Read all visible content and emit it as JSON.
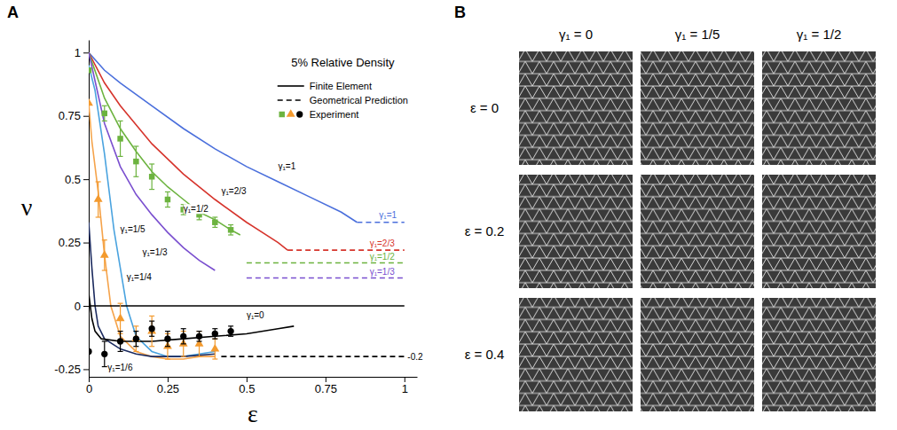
{
  "chart_data": {
    "type": "line",
    "panel_label": "A",
    "title": "5% Relative Density",
    "x_label": "ε",
    "y_label": "ν",
    "xlim": [
      0,
      1.04
    ],
    "xticks": [
      0,
      0.25,
      0.5,
      0.75,
      1
    ],
    "ylim": [
      -0.28,
      1.05
    ],
    "yticks": [
      -0.25,
      0,
      0.25,
      0.5,
      0.75,
      1
    ],
    "legend": "top-right",
    "legend_items": [
      {
        "name": "Finite Element",
        "line_style": "solid",
        "color": "#000000"
      },
      {
        "name": "Geometrical Prediction",
        "line_style": "dashed",
        "color": "#000000"
      },
      {
        "name": "Experiment",
        "marker": [
          "square",
          "triangle",
          "circle"
        ],
        "colors": [
          "#6cb33f",
          "#f39a2e",
          "#000000"
        ]
      }
    ],
    "series": [
      {
        "type": "line",
        "line_style": "solid",
        "color": "#4a6fdc",
        "x": [
          0,
          0.05,
          0.1,
          0.2,
          0.3,
          0.4,
          0.5,
          0.6,
          0.7,
          0.8,
          0.85
        ],
        "values": [
          1,
          0.93,
          0.88,
          0.79,
          0.7,
          0.62,
          0.55,
          0.49,
          0.43,
          0.37,
          0.33
        ]
      },
      {
        "type": "line",
        "line_style": "solid",
        "color": "#d6342c",
        "x": [
          0,
          0.05,
          0.1,
          0.2,
          0.3,
          0.4,
          0.5,
          0.6,
          0.63
        ],
        "values": [
          1,
          0.88,
          0.79,
          0.64,
          0.52,
          0.42,
          0.33,
          0.25,
          0.22
        ]
      },
      {
        "type": "line",
        "line_style": "solid",
        "color": "#6cb33f",
        "x": [
          0,
          0.05,
          0.1,
          0.15,
          0.2,
          0.25,
          0.3,
          0.35,
          0.4,
          0.45,
          0.48
        ],
        "values": [
          1,
          0.82,
          0.7,
          0.61,
          0.53,
          0.47,
          0.42,
          0.37,
          0.34,
          0.3,
          0.28
        ]
      },
      {
        "type": "line",
        "line_style": "solid",
        "color": "#7a4fcf",
        "x": [
          0,
          0.05,
          0.1,
          0.15,
          0.2,
          0.25,
          0.3,
          0.35,
          0.4
        ],
        "values": [
          1,
          0.72,
          0.55,
          0.44,
          0.36,
          0.29,
          0.23,
          0.18,
          0.14
        ]
      },
      {
        "type": "line",
        "line_style": "solid",
        "color": "#4aa3df",
        "x": [
          0,
          0.02,
          0.05,
          0.08,
          0.1,
          0.12,
          0.15,
          0.2,
          0.25,
          0.3,
          0.35,
          0.4
        ],
        "values": [
          0.95,
          0.85,
          0.6,
          0.3,
          0.15,
          0,
          -0.12,
          -0.18,
          -0.2,
          -0.2,
          -0.19,
          -0.18
        ]
      },
      {
        "type": "line",
        "line_style": "solid",
        "color": "#f5a34b",
        "x": [
          0,
          0.01,
          0.03,
          0.05,
          0.07,
          0.1,
          0.15,
          0.2,
          0.25,
          0.3,
          0.35,
          0.4
        ],
        "values": [
          0.8,
          0.65,
          0.45,
          0.2,
          0,
          -0.12,
          -0.18,
          -0.2,
          -0.21,
          -0.21,
          -0.2,
          -0.2
        ]
      },
      {
        "type": "line",
        "line_style": "solid",
        "color": "#1b2a5e",
        "x": [
          0,
          0.01,
          0.02,
          0.03,
          0.05,
          0.1,
          0.15,
          0.2,
          0.3,
          0.4
        ],
        "values": [
          0.33,
          0.15,
          0,
          -0.08,
          -0.13,
          -0.17,
          -0.19,
          -0.2,
          -0.2,
          -0.19
        ]
      },
      {
        "type": "line",
        "line_style": "solid",
        "color": "#000000",
        "x": [
          0,
          0.01,
          0.02,
          0.04,
          0.1,
          0.2,
          0.3,
          0.4,
          0.5,
          0.6,
          0.65
        ],
        "values": [
          0.05,
          -0.05,
          -0.1,
          -0.13,
          -0.14,
          -0.14,
          -0.13,
          -0.12,
          -0.11,
          -0.09,
          -0.08
        ]
      },
      {
        "type": "line",
        "line_style": "solid",
        "color": "#000000",
        "x": [
          0,
          1
        ],
        "values": [
          0,
          0
        ]
      },
      {
        "type": "line",
        "line_style": "dashed",
        "color": "#4a6fdc",
        "x": [
          0.85,
          1
        ],
        "values": [
          0.33,
          0.33
        ]
      },
      {
        "type": "line",
        "line_style": "dashed",
        "color": "#d6342c",
        "x": [
          0.63,
          1
        ],
        "values": [
          0.22,
          0.22
        ]
      },
      {
        "type": "line",
        "line_style": "dashed",
        "color": "#6cb33f",
        "x": [
          0.5,
          1
        ],
        "values": [
          0.17,
          0.17
        ]
      },
      {
        "type": "line",
        "line_style": "dashed",
        "color": "#7a4fcf",
        "x": [
          0.5,
          1
        ],
        "values": [
          0.11,
          0.11
        ]
      },
      {
        "type": "line",
        "line_style": "dashed",
        "color": "#000000",
        "x": [
          0.42,
          1
        ],
        "values": [
          -0.2,
          -0.2
        ]
      },
      {
        "type": "scatter",
        "marker": "square",
        "color": "#6cb33f",
        "x": [
          0,
          0.05,
          0.1,
          0.15,
          0.2,
          0.25,
          0.3,
          0.35,
          0.4,
          0.45
        ],
        "values": [
          0.93,
          0.76,
          0.66,
          0.57,
          0.51,
          0.42,
          0.38,
          0.36,
          0.33,
          0.3
        ],
        "errors": [
          0,
          0.03,
          0.07,
          0.06,
          0.05,
          0.03,
          0.02,
          0.02,
          0.02,
          0.02
        ]
      },
      {
        "type": "scatter",
        "marker": "triangle",
        "color": "#f39a2e",
        "x": [
          0,
          0.03,
          0.05,
          0.1,
          0.15,
          0.2,
          0.25,
          0.3,
          0.35,
          0.4
        ],
        "values": [
          0.8,
          0.42,
          0.2,
          -0.05,
          -0.13,
          -0.1,
          -0.16,
          -0.15,
          -0.15,
          -0.17
        ],
        "errors": [
          0,
          0.07,
          0.06,
          0.06,
          0.05,
          0.06,
          0.05,
          0.05,
          0.05,
          0.04
        ]
      },
      {
        "type": "scatter",
        "marker": "circle",
        "color": "#000000",
        "x": [
          0,
          0.05,
          0.1,
          0.15,
          0.2,
          0.25,
          0.3,
          0.35,
          0.4,
          0.45
        ],
        "values": [
          -0.18,
          -0.19,
          -0.14,
          -0.13,
          -0.09,
          -0.13,
          -0.12,
          -0.12,
          -0.11,
          -0.1
        ],
        "errors": [
          0,
          0.05,
          0.04,
          0.03,
          0.03,
          0.03,
          0.03,
          0.02,
          0.02,
          0.02
        ]
      }
    ],
    "annotations": [
      {
        "text": "γ₁=1",
        "x": 0.6,
        "y": 0.54
      },
      {
        "text": "γ₁=2/3",
        "x": 0.42,
        "y": 0.44
      },
      {
        "text": "γ₁=1/2",
        "x": 0.3,
        "y": 0.37
      },
      {
        "text": "γ₁=1/3",
        "x": 0.17,
        "y": 0.2
      },
      {
        "text": "γ₁=1/4",
        "x": 0.12,
        "y": 0.1
      },
      {
        "text": "γ₁=1/5",
        "x": 0.1,
        "y": 0.29
      },
      {
        "text": "γ₁=1/6",
        "x": 0.06,
        "y": -0.255
      },
      {
        "text": "γ₁=0",
        "x": 0.5,
        "y": -0.05
      },
      {
        "text": "γ₁=1",
        "x": 0.92,
        "y": 0.345,
        "color": "#4a6fdc"
      },
      {
        "text": "γ₁=2/3",
        "x": 0.89,
        "y": 0.235,
        "color": "#d6342c"
      },
      {
        "text": "γ₁=1/2",
        "x": 0.89,
        "y": 0.183,
        "color": "#6cb33f"
      },
      {
        "text": "γ₁=1/3",
        "x": 0.89,
        "y": 0.123,
        "color": "#7a4fcf"
      },
      {
        "text": "-0.2",
        "x": 1.01,
        "y": -0.215,
        "color": "#000000"
      }
    ]
  },
  "panel_b": {
    "panel_label": "B",
    "columns": [
      "γ₁ = 0",
      "γ₁ = 1/5",
      "γ₁ = 1/2"
    ],
    "rows": [
      "ε = 0",
      "ε = 0.2",
      "ε = 0.4"
    ]
  }
}
